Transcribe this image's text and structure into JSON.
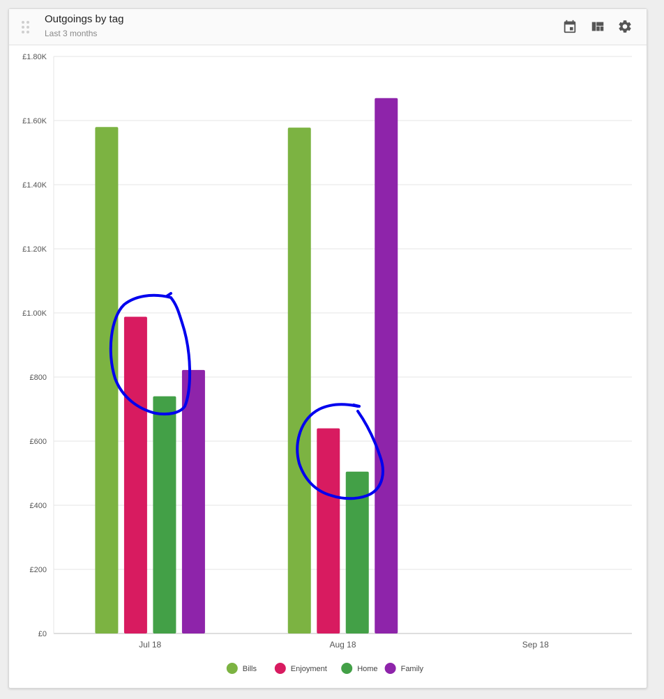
{
  "widget": {
    "title": "Outgoings by tag",
    "subtitle": "Last 3 months",
    "icons": [
      "drag-handle-icon",
      "calendar-icon",
      "dashboard-icon",
      "gear-icon"
    ]
  },
  "chart_data": {
    "type": "bar",
    "categories": [
      "Jul 18",
      "Aug 18",
      "Sep 18"
    ],
    "series": [
      {
        "name": "Bills",
        "color": "#7cb342",
        "values": [
          1580,
          1578,
          0
        ]
      },
      {
        "name": "Enjoyment",
        "color": "#d81b60",
        "values": [
          988,
          640,
          0
        ]
      },
      {
        "name": "Home",
        "color": "#43a047",
        "values": [
          740,
          505,
          0
        ]
      },
      {
        "name": "Family",
        "color": "#8e24aa",
        "values": [
          822,
          1670,
          0
        ]
      }
    ],
    "yticks": [
      "£0",
      "£200",
      "£400",
      "£600",
      "£800",
      "£1.00K",
      "£1.20K",
      "£1.40K",
      "£1.60K",
      "£1.80K"
    ],
    "ytick_values": [
      0,
      200,
      400,
      600,
      800,
      1000,
      1200,
      1400,
      1600,
      1800
    ],
    "ylim": [
      0,
      1800
    ],
    "grid": true,
    "legend": "bottom-center",
    "annotation_color": "#0000ee"
  }
}
